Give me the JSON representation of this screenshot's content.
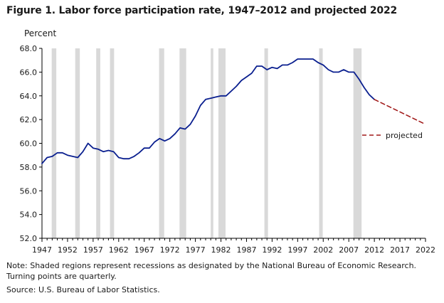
{
  "title": "Figure 1. Labor force participation rate, 1947–2012 and projected 2022",
  "note": "Note: Shaded regions represent recessions as designated by the National Bureau of Economic Research. Turning points are quarterly.",
  "source": "Source: U.S. Bureau of Labor Statistics.",
  "colors": {
    "line": "#0a1f8f",
    "projected": "#a01818",
    "recession": "#d9d9d9",
    "axis": "#000000"
  },
  "chart_data": {
    "type": "line",
    "title": "Figure 1. Labor force participation rate, 1947–2012 and projected 2022",
    "ylabel": "Percent",
    "xlabel": "",
    "xlim": [
      1947,
      2022
    ],
    "ylim": [
      52.0,
      68.0
    ],
    "grid": false,
    "legend": "right, inside plot",
    "x_ticks": [
      "1947",
      "1952",
      "1957",
      "1962",
      "1967",
      "1972",
      "1977",
      "1982",
      "1987",
      "1992",
      "1997",
      "2002",
      "2007",
      "2012",
      "2017",
      "2022"
    ],
    "y_ticks": [
      "52.0",
      "54.0",
      "56.0",
      "58.0",
      "60.0",
      "62.0",
      "64.0",
      "66.0",
      "68.0"
    ],
    "recessions": [
      [
        1948.9,
        1949.8
      ],
      [
        1953.5,
        1954.4
      ],
      [
        1957.6,
        1958.4
      ],
      [
        1960.3,
        1961.1
      ],
      [
        1969.9,
        1970.9
      ],
      [
        1973.9,
        1975.2
      ],
      [
        1980.0,
        1980.5
      ],
      [
        1981.5,
        1982.9
      ],
      [
        1990.5,
        1991.2
      ],
      [
        2001.2,
        2001.9
      ],
      [
        2007.9,
        2009.5
      ]
    ],
    "series": [
      {
        "name": "",
        "style": "solid",
        "x": [
          1947,
          1948,
          1949,
          1950,
          1951,
          1952,
          1953,
          1954,
          1955,
          1956,
          1957,
          1958,
          1959,
          1960,
          1961,
          1962,
          1963,
          1964,
          1965,
          1966,
          1967,
          1968,
          1969,
          1970,
          1971,
          1972,
          1973,
          1974,
          1975,
          1976,
          1977,
          1978,
          1979,
          1980,
          1981,
          1982,
          1983,
          1984,
          1985,
          1986,
          1987,
          1988,
          1989,
          1990,
          1991,
          1992,
          1993,
          1994,
          1995,
          1996,
          1997,
          1998,
          1999,
          2000,
          2001,
          2002,
          2003,
          2004,
          2005,
          2006,
          2007,
          2008,
          2009,
          2010,
          2011,
          2012
        ],
        "y": [
          58.3,
          58.8,
          58.9,
          59.2,
          59.2,
          59.0,
          58.9,
          58.8,
          59.3,
          60.0,
          59.6,
          59.5,
          59.3,
          59.4,
          59.3,
          58.8,
          58.7,
          58.7,
          58.9,
          59.2,
          59.6,
          59.6,
          60.1,
          60.4,
          60.2,
          60.4,
          60.8,
          61.3,
          61.2,
          61.6,
          62.3,
          63.2,
          63.7,
          63.8,
          63.9,
          64.0,
          64.0,
          64.4,
          64.8,
          65.3,
          65.6,
          65.9,
          66.5,
          66.5,
          66.2,
          66.4,
          66.3,
          66.6,
          66.6,
          66.8,
          67.1,
          67.1,
          67.1,
          67.1,
          66.8,
          66.6,
          66.2,
          66.0,
          66.0,
          66.2,
          66.0,
          66.0,
          65.4,
          64.7,
          64.1,
          63.7
        ]
      },
      {
        "name": "projected",
        "style": "dashed",
        "x": [
          2012,
          2022
        ],
        "y": [
          63.7,
          61.6
        ]
      }
    ]
  }
}
